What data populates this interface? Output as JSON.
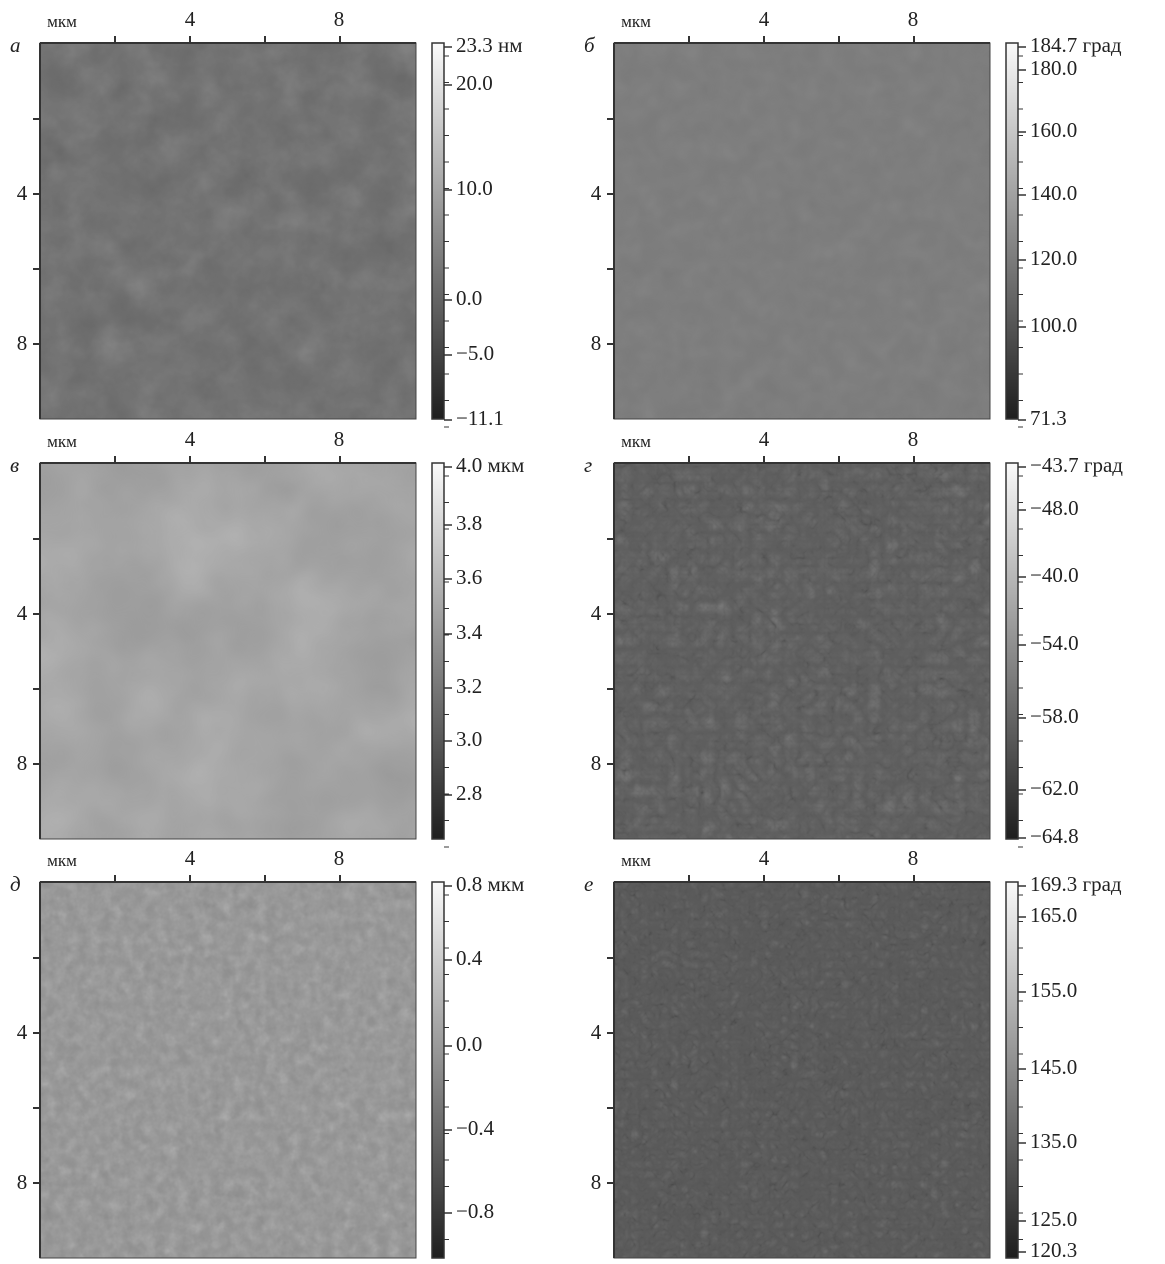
{
  "panels": [
    {
      "letter": "а",
      "unit": "мкм",
      "xticks": [
        "4",
        "8"
      ],
      "yticks": [
        "4",
        "8"
      ],
      "colorbar": [
        "23.3 нм",
        "20.0",
        "10.0",
        "0.0",
        "−5.0",
        "−11.1"
      ]
    },
    {
      "letter": "б",
      "unit": "мкм",
      "xticks": [
        "4",
        "8"
      ],
      "yticks": [
        "4",
        "8"
      ],
      "colorbar": [
        "184.7 град",
        "180.0",
        "160.0",
        "140.0",
        "120.0",
        "100.0",
        "71.3"
      ]
    },
    {
      "letter": "в",
      "unit": "мкм",
      "xticks": [
        "4",
        "8"
      ],
      "yticks": [
        "4",
        "8"
      ],
      "colorbar": [
        "4.0 мкм",
        "3.8",
        "3.6",
        "3.4",
        "3.2",
        "3.0",
        "2.8"
      ]
    },
    {
      "letter": "г",
      "unit": "мкм",
      "xticks": [
        "4",
        "8"
      ],
      "yticks": [
        "4",
        "8"
      ],
      "colorbar": [
        "−43.7 град",
        "−48.0",
        "−40.0",
        "−54.0",
        "−58.0",
        "−62.0",
        "−64.8"
      ]
    },
    {
      "letter": "д",
      "unit": "мкм",
      "xticks": [
        "4",
        "8"
      ],
      "yticks": [
        "4",
        "8"
      ],
      "colorbar": [
        "0.8 мкм",
        "0.4",
        "0.0",
        "−0.4",
        "−0.8"
      ]
    },
    {
      "letter": "е",
      "unit": "мкм",
      "xticks": [
        "4",
        "8"
      ],
      "yticks": [
        "4",
        "8"
      ],
      "colorbar": [
        "169.3 град",
        "165.0",
        "155.0",
        "145.0",
        "135.0",
        "125.0",
        "120.3"
      ]
    }
  ]
}
